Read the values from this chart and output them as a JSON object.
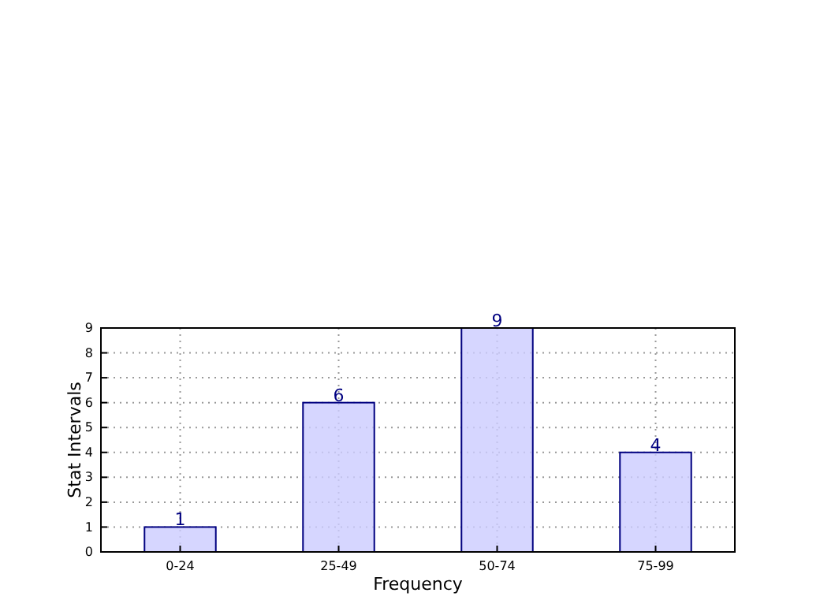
{
  "chart_data": {
    "type": "bar",
    "xlabel": "Frequency",
    "ylabel": "Stat Intervals",
    "categories": [
      "0-24",
      "25-49",
      "50-74",
      "75-99"
    ],
    "series": [
      {
        "color": "#ccccff",
        "values": [
          1,
          6,
          9,
          4
        ]
      }
    ],
    "ylim": [
      0,
      9
    ],
    "yticks": [
      0,
      1,
      2,
      3,
      4,
      5,
      6,
      7,
      8,
      9
    ],
    "grid": true,
    "data_labels": true
  }
}
